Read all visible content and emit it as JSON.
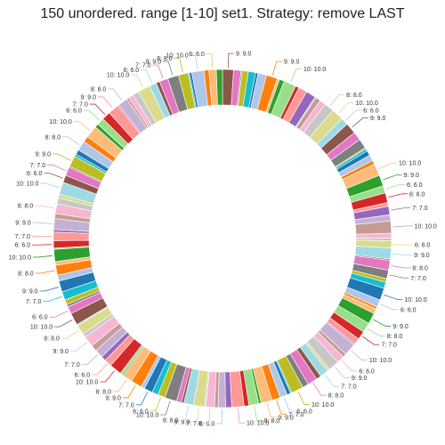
{
  "chart_data": {
    "type": "pie",
    "title": "150 unordered. range [1-10] set1. Strategy: remove LAST",
    "donut": true,
    "palette": [
      "#8c564b",
      "#e377c2",
      "#7f7f7f",
      "#bcbd22",
      "#17becf",
      "#1f77b4",
      "#aec7e8",
      "#ff7f0e",
      "#ffbb78",
      "#2ca02c",
      "#98df8a",
      "#d62728",
      "#ff9896",
      "#9467bd",
      "#c5b0d5",
      "#c49c94",
      "#f7b6d2",
      "#c7c7c7",
      "#dbdb8d",
      "#9edae5"
    ],
    "values": [
      9,
      6,
      1,
      5,
      6,
      2,
      7,
      9,
      2,
      4,
      10,
      3,
      7,
      8,
      1,
      4,
      5,
      8,
      10,
      6,
      9,
      7,
      8,
      1,
      2,
      4,
      5,
      3,
      10,
      9,
      6,
      8,
      3,
      7,
      5,
      10,
      4,
      2,
      6,
      9,
      1,
      8,
      7,
      3,
      5,
      10,
      6,
      2,
      4,
      9,
      8,
      7,
      5,
      1,
      10,
      3,
      6,
      9,
      2,
      7,
      4,
      8,
      5,
      10,
      1,
      3,
      6,
      7,
      9,
      2,
      8,
      4,
      10,
      5,
      6,
      3,
      7,
      1,
      9,
      8,
      2,
      4,
      10,
      6,
      5,
      7,
      3,
      9,
      8,
      1,
      2,
      10,
      6,
      4,
      7,
      5,
      9,
      3,
      8,
      1,
      10,
      6,
      2,
      4,
      7,
      9,
      5,
      8,
      3,
      10,
      1,
      6,
      7,
      2,
      9,
      4,
      8,
      5,
      3,
      10,
      6,
      7,
      1,
      9,
      2,
      4,
      8,
      5,
      10,
      3,
      6,
      7,
      9,
      1,
      8,
      2,
      4,
      5,
      10,
      6,
      3,
      7,
      9,
      8,
      1,
      2,
      10,
      4,
      6,
      5
    ],
    "slice_labels": {
      "0": "9: 9.0",
      "7": "9: 9.0",
      "10": "10: 10.0",
      "17": "8: 8.0",
      "18": "10: 10.0",
      "19": "6: 6.0",
      "20": "9: 9.0",
      "28": "10: 10.0",
      "29": "9: 9.0",
      "30": "6: 6.0",
      "31": "8: 8.0",
      "33": "7: 7.0",
      "35": "10: 10.0",
      "38": "6: 6.0",
      "39": "9: 9.0",
      "41": "8: 8.0",
      "42": "7: 7.0",
      "45": "10: 10.0",
      "46": "6: 6.0",
      "49": "9: 9.0",
      "50": "8: 8.0",
      "51": "7: 7.0",
      "54": "10: 10.0",
      "56": "6: 6.0",
      "57": "9: 9.0",
      "59": "7: 7.0",
      "61": "8: 8.0",
      "63": "10: 10.0",
      "66": "6: 6.0",
      "67": "7: 7.0",
      "68": "9: 9.0",
      "70": "8: 8.0",
      "72": "10: 10.0",
      "74": "6: 6.0",
      "76": "7: 7.0",
      "78": "9: 9.0",
      "79": "8: 8.0",
      "82": "10: 10.0",
      "83": "6: 6.0",
      "85": "7: 7.0",
      "87": "9: 9.0",
      "88": "8: 8.0",
      "91": "10: 10.0",
      "92": "6: 6.0",
      "94": "7: 7.0",
      "96": "9: 9.0",
      "98": "8: 8.0",
      "100": "10: 10.0",
      "101": "6: 6.0",
      "104": "7: 7.0",
      "105": "9: 9.0",
      "107": "8: 8.0",
      "109": "10: 10.0",
      "111": "6: 6.0",
      "112": "7: 7.0",
      "114": "9: 9.0",
      "116": "8: 8.0",
      "119": "10: 10.0",
      "120": "6: 6.0",
      "121": "7: 7.0",
      "123": "9: 9.0",
      "126": "8: 8.0",
      "128": "10: 10.0",
      "130": "6: 6.0",
      "131": "7: 7.0",
      "132": "9: 9.0",
      "134": "8: 8.0",
      "138": "10: 10.0",
      "139": "6: 6.0",
      "141": "7: 7.0",
      "142": "9: 9.0",
      "143": "8: 8.0",
      "146": "10: 10.0",
      "148": "6: 6.0"
    },
    "legend": "none",
    "grid": false
  }
}
